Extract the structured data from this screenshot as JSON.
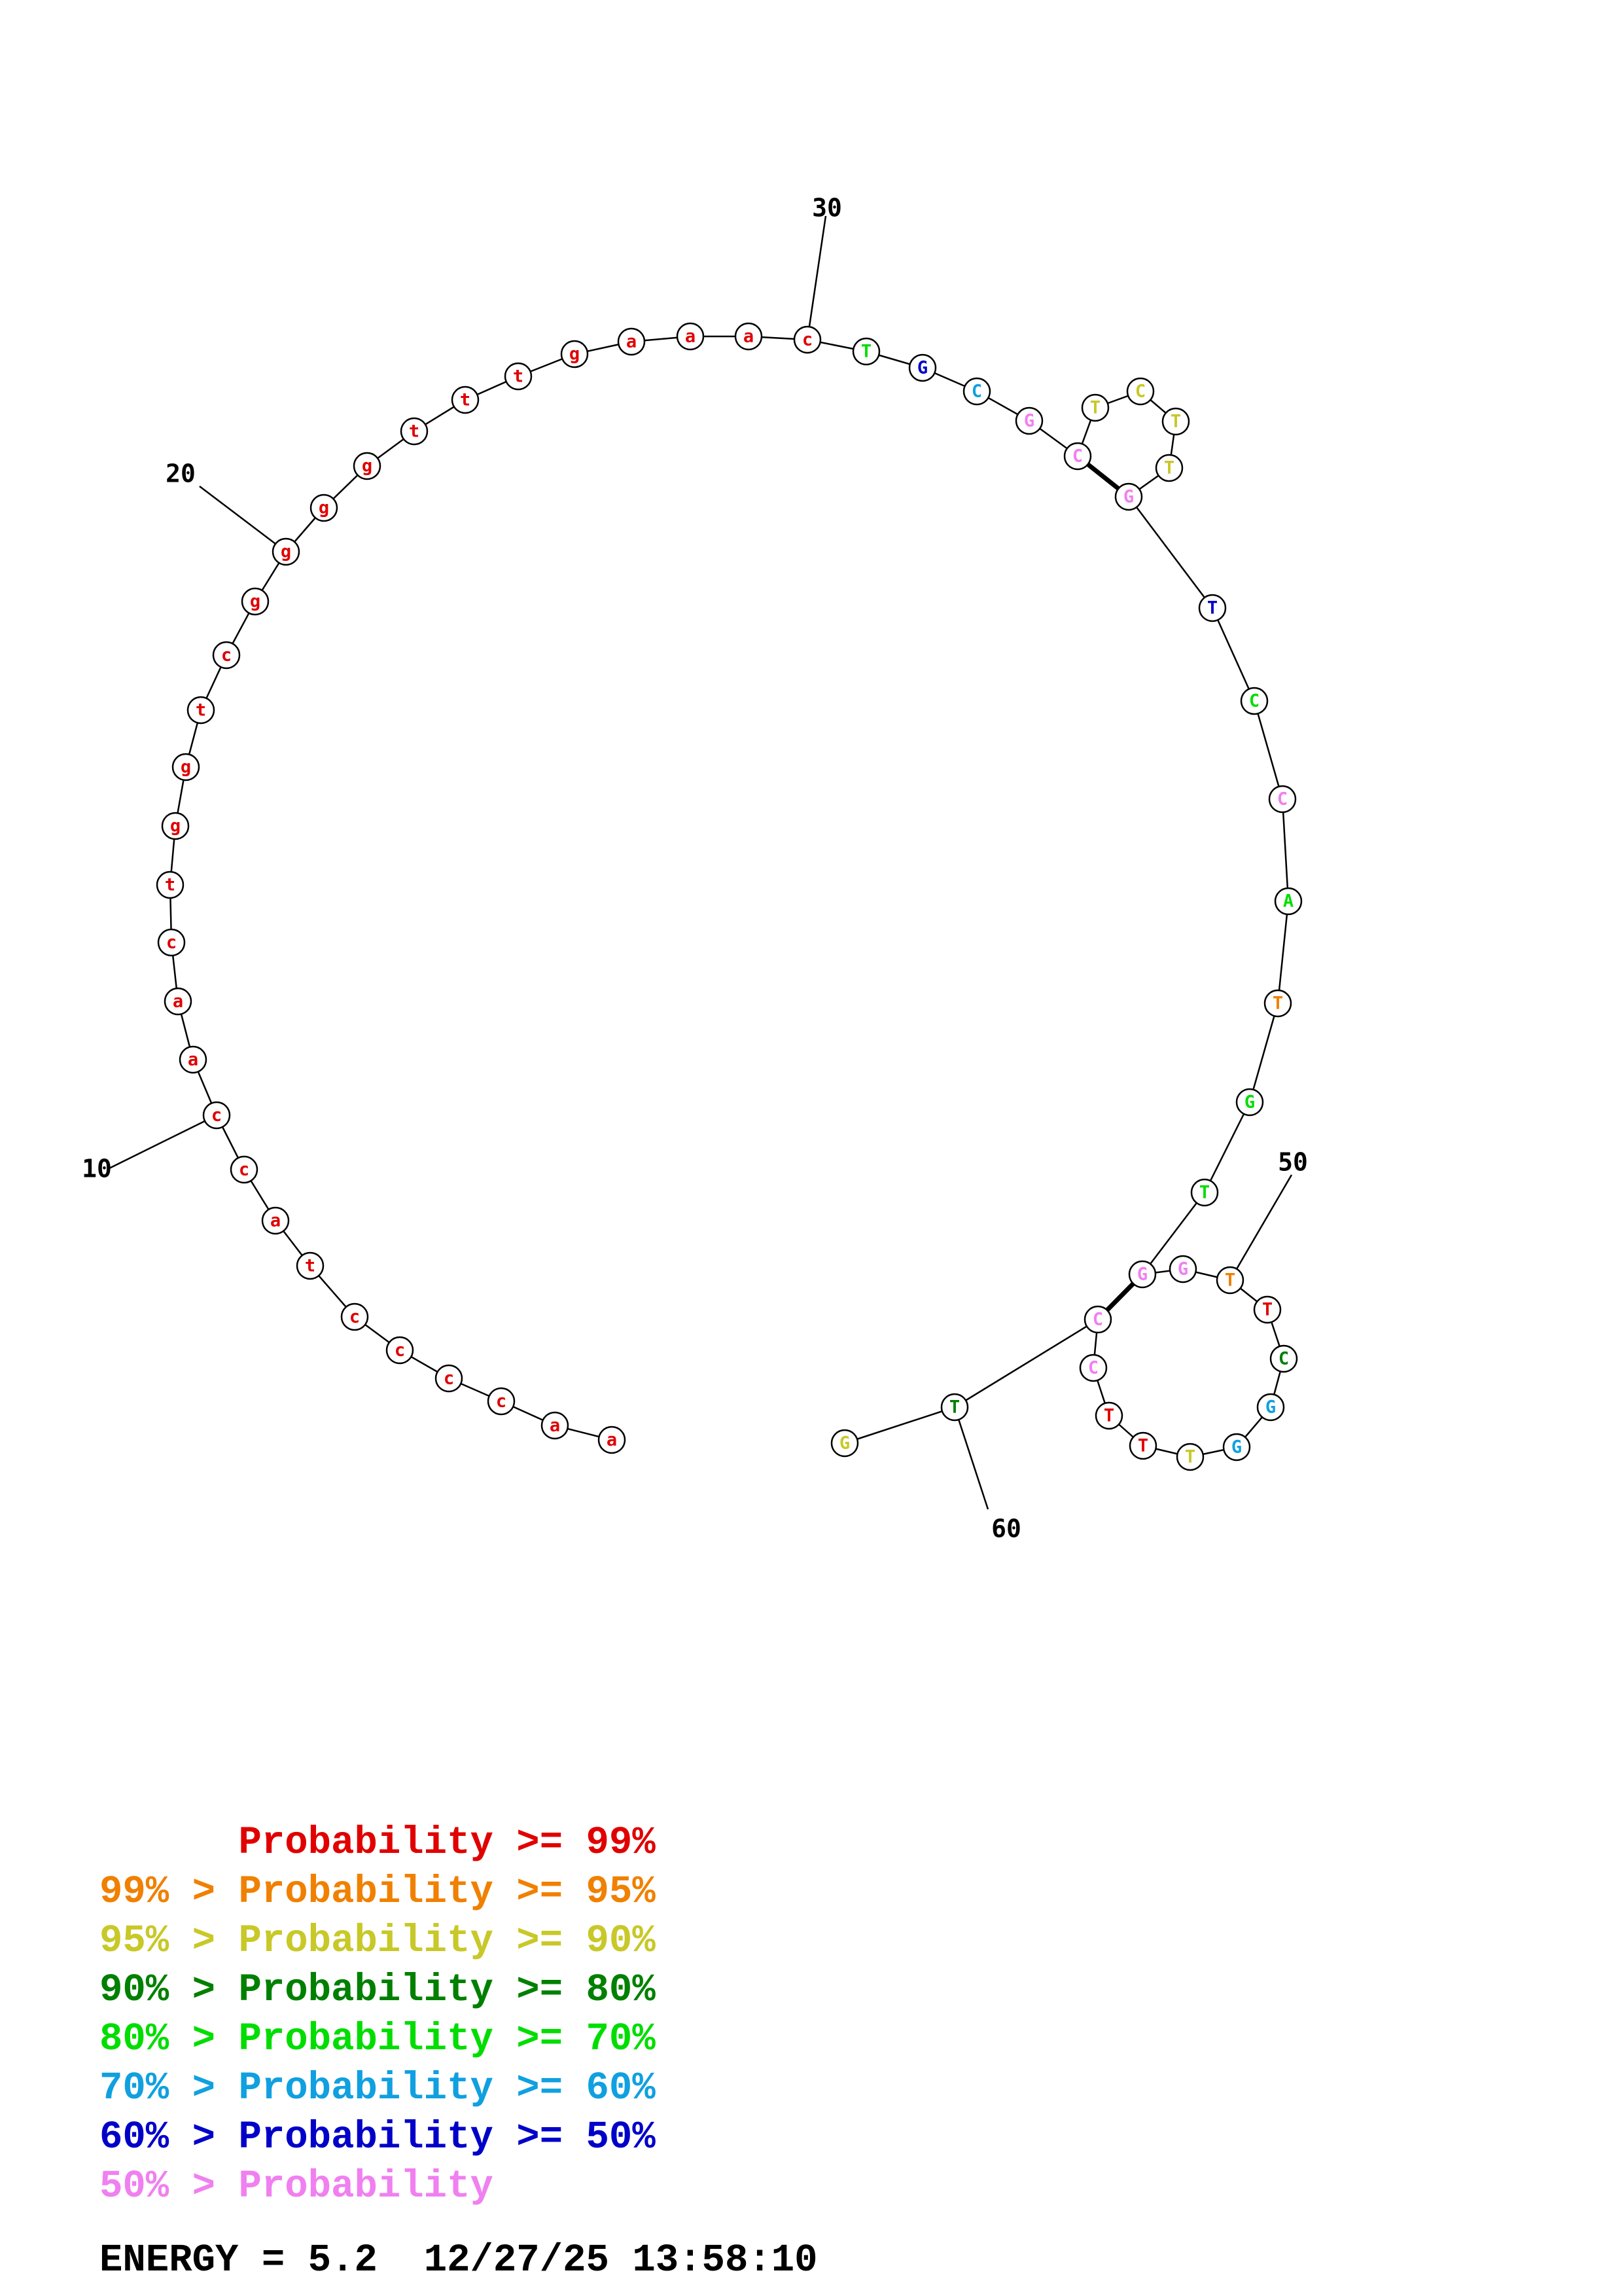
{
  "colors": {
    "p99": "#e00000",
    "p95": "#f08000",
    "p90": "#c8c828",
    "p80": "#008000",
    "p70": "#00dd00",
    "p60": "#10a0e0",
    "p50": "#0000c8",
    "plt50": "#f080f0"
  },
  "sequence": [
    {
      "n": 1,
      "base": "a",
      "prob": "p99"
    },
    {
      "n": 2,
      "base": "a",
      "prob": "p99"
    },
    {
      "n": 3,
      "base": "c",
      "prob": "p99"
    },
    {
      "n": 4,
      "base": "c",
      "prob": "p99"
    },
    {
      "n": 5,
      "base": "c",
      "prob": "p99"
    },
    {
      "n": 6,
      "base": "c",
      "prob": "p99"
    },
    {
      "n": 7,
      "base": "t",
      "prob": "p99"
    },
    {
      "n": 8,
      "base": "a",
      "prob": "p99"
    },
    {
      "n": 9,
      "base": "c",
      "prob": "p99"
    },
    {
      "n": 10,
      "base": "c",
      "prob": "p99"
    },
    {
      "n": 11,
      "base": "a",
      "prob": "p99"
    },
    {
      "n": 12,
      "base": "a",
      "prob": "p99"
    },
    {
      "n": 13,
      "base": "c",
      "prob": "p99"
    },
    {
      "n": 14,
      "base": "t",
      "prob": "p99"
    },
    {
      "n": 15,
      "base": "g",
      "prob": "p99"
    },
    {
      "n": 16,
      "base": "g",
      "prob": "p99"
    },
    {
      "n": 17,
      "base": "t",
      "prob": "p99"
    },
    {
      "n": 18,
      "base": "c",
      "prob": "p99"
    },
    {
      "n": 19,
      "base": "g",
      "prob": "p99"
    },
    {
      "n": 20,
      "base": "g",
      "prob": "p99"
    },
    {
      "n": 21,
      "base": "g",
      "prob": "p99"
    },
    {
      "n": 22,
      "base": "g",
      "prob": "p99"
    },
    {
      "n": 23,
      "base": "t",
      "prob": "p99"
    },
    {
      "n": 24,
      "base": "t",
      "prob": "p99"
    },
    {
      "n": 25,
      "base": "t",
      "prob": "p99"
    },
    {
      "n": 26,
      "base": "g",
      "prob": "p99"
    },
    {
      "n": 27,
      "base": "a",
      "prob": "p99"
    },
    {
      "n": 28,
      "base": "a",
      "prob": "p99"
    },
    {
      "n": 29,
      "base": "a",
      "prob": "p99"
    },
    {
      "n": 30,
      "base": "c",
      "prob": "p99"
    },
    {
      "n": 31,
      "base": "T",
      "prob": "p70"
    },
    {
      "n": 32,
      "base": "G",
      "prob": "p50"
    },
    {
      "n": 33,
      "base": "C",
      "prob": "p60"
    },
    {
      "n": 34,
      "base": "G",
      "prob": "plt50"
    },
    {
      "n": 35,
      "base": "C",
      "prob": "plt50"
    },
    {
      "n": 36,
      "base": "T",
      "prob": "p90"
    },
    {
      "n": 37,
      "base": "C",
      "prob": "p90"
    },
    {
      "n": 38,
      "base": "T",
      "prob": "p90"
    },
    {
      "n": 39,
      "base": "T",
      "prob": "p90"
    },
    {
      "n": 40,
      "base": "G",
      "prob": "plt50"
    },
    {
      "n": 41,
      "base": "T",
      "prob": "p50"
    },
    {
      "n": 42,
      "base": "C",
      "prob": "p70"
    },
    {
      "n": 43,
      "base": "C",
      "prob": "plt50"
    },
    {
      "n": 44,
      "base": "A",
      "prob": "p70"
    },
    {
      "n": 45,
      "base": "T",
      "prob": "p95"
    },
    {
      "n": 46,
      "base": "G",
      "prob": "p70"
    },
    {
      "n": 47,
      "base": "T",
      "prob": "p70"
    },
    {
      "n": 48,
      "base": "G",
      "prob": "plt50"
    },
    {
      "n": 49,
      "base": "G",
      "prob": "plt50"
    },
    {
      "n": 50,
      "base": "T",
      "prob": "p95"
    },
    {
      "n": 51,
      "base": "T",
      "prob": "p99"
    },
    {
      "n": 52,
      "base": "C",
      "prob": "p80"
    },
    {
      "n": 53,
      "base": "G",
      "prob": "p60"
    },
    {
      "n": 54,
      "base": "G",
      "prob": "p60"
    },
    {
      "n": 55,
      "base": "T",
      "prob": "p90"
    },
    {
      "n": 56,
      "base": "T",
      "prob": "p99"
    },
    {
      "n": 57,
      "base": "T",
      "prob": "p99"
    },
    {
      "n": 58,
      "base": "C",
      "prob": "plt50"
    },
    {
      "n": 59,
      "base": "C",
      "prob": "plt50"
    },
    {
      "n": 60,
      "base": "T",
      "prob": "p80"
    },
    {
      "n": 61,
      "base": "G",
      "prob": "p90"
    }
  ],
  "pairs": [
    [
      35,
      40
    ],
    [
      48,
      59
    ]
  ],
  "index_labels": [
    "10",
    "20",
    "30",
    "50",
    "60"
  ],
  "legend": [
    {
      "prefix": "",
      "text": "Probability >= 99%",
      "color": "p99"
    },
    {
      "prefix": "99% > ",
      "text": "Probability >= 95%",
      "color": "p95"
    },
    {
      "prefix": "95% > ",
      "text": "Probability >= 90%",
      "color": "p90"
    },
    {
      "prefix": "90% > ",
      "text": "Probability >= 80%",
      "color": "p80"
    },
    {
      "prefix": "80% > ",
      "text": "Probability >= 70%",
      "color": "p70"
    },
    {
      "prefix": "70% > ",
      "text": "Probability >= 60%",
      "color": "p60"
    },
    {
      "prefix": "60% > ",
      "text": "Probability >= 50%",
      "color": "p50"
    },
    {
      "prefix": "50% > ",
      "text": "Probability",
      "color": "plt50"
    }
  ],
  "footer": {
    "energy_label": "ENERGY = 5.2",
    "timestamp": "12/27/25 13:58:10"
  }
}
